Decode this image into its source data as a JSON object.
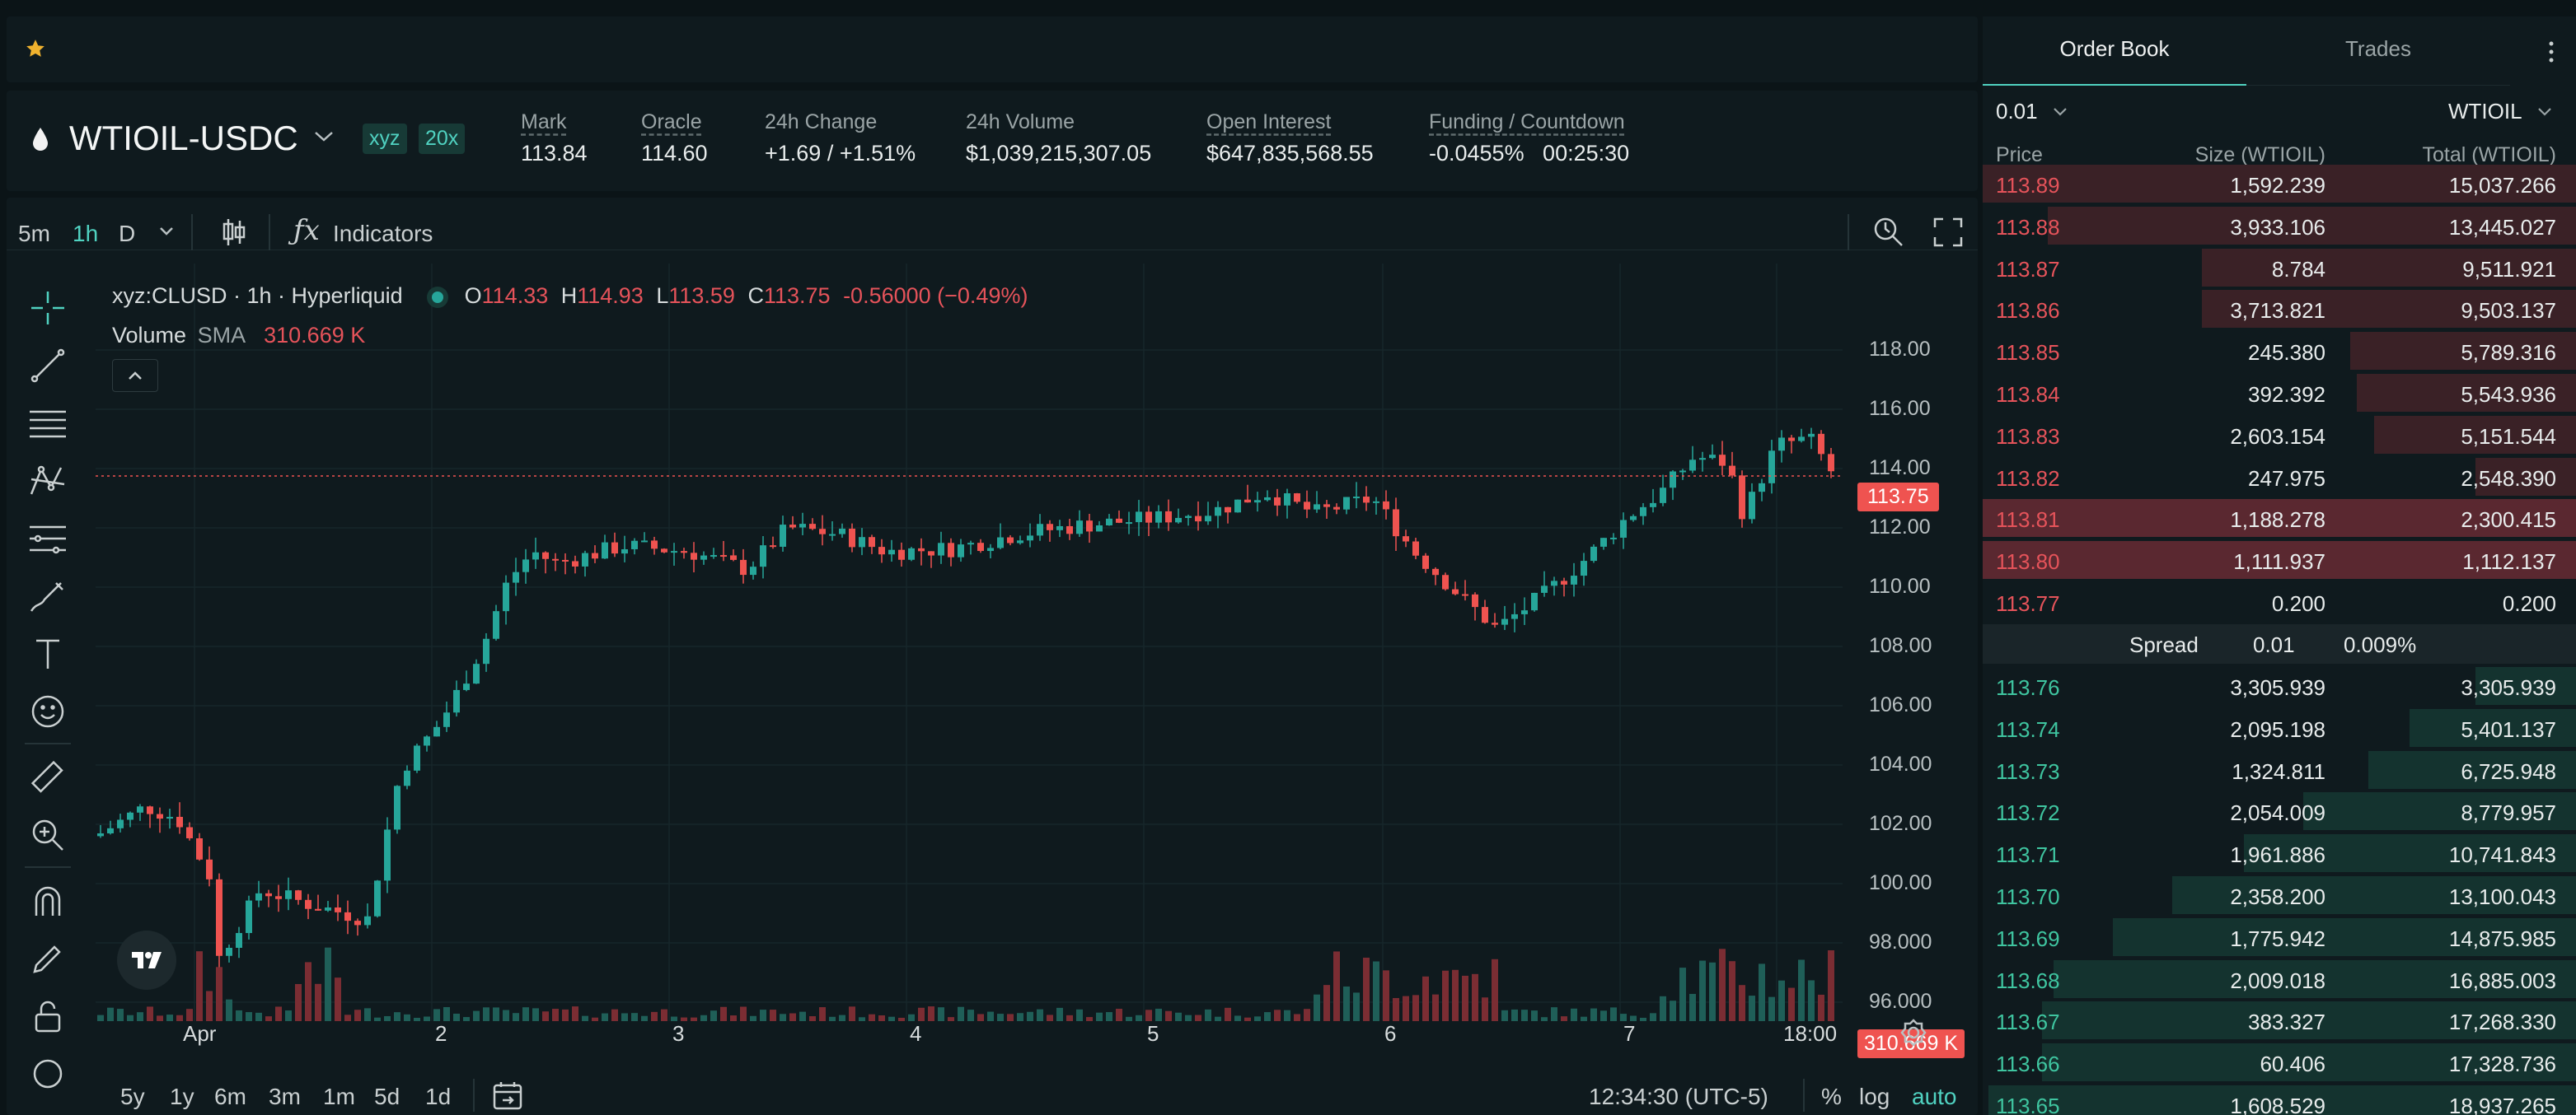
{
  "market": {
    "symbol": "WTIOIL-USDC",
    "dex_badge": "xyz",
    "leverage_badge": "20x"
  },
  "stats": [
    {
      "label": "Mark",
      "value": "113.84",
      "underline": true,
      "tone": "plain"
    },
    {
      "label": "Oracle",
      "value": "114.60",
      "underline": true,
      "tone": "plain"
    },
    {
      "label": "24h Change",
      "value": "+1.69 / +1.51%",
      "underline": false,
      "tone": "green"
    },
    {
      "label": "24h Volume",
      "value": "$1,039,215,307.05",
      "underline": false,
      "tone": "plain"
    },
    {
      "label": "Open Interest",
      "value": "$647,835,568.55",
      "underline": true,
      "tone": "plain"
    },
    {
      "label": "Funding / Countdown",
      "value": "-0.0455%",
      "value2": "00:25:30",
      "underline": true,
      "tone": "green"
    }
  ],
  "chart_toolbar": {
    "intervals": [
      "5m",
      "1h",
      "D"
    ],
    "active_interval": "1h",
    "indicators_label": "Indicators"
  },
  "legend": {
    "title": "xyz:CLUSD · 1h · Hyperliquid",
    "o_label": "O",
    "o": "114.33",
    "h_label": "H",
    "h": "114.93",
    "l_label": "L",
    "l": "113.59",
    "c_label": "C",
    "c": "113.75",
    "change": "-0.56000 (−0.49%)",
    "volume_label": "Volume",
    "sma_label": "SMA",
    "volume_value": "310.669 K"
  },
  "y_axis_labels": [
    "118.00",
    "116.00",
    "114.00",
    "112.00",
    "110.00",
    "108.00",
    "106.00",
    "104.00",
    "102.00",
    "100.00",
    "98.000",
    "96.000"
  ],
  "price_tag": "113.75",
  "volume_tag": "310.669 K",
  "x_axis_labels": [
    "Apr",
    "2",
    "3",
    "4",
    "5",
    "6",
    "7",
    "18:00"
  ],
  "bottom_bar": {
    "ranges": [
      "5y",
      "1y",
      "6m",
      "3m",
      "1m",
      "5d",
      "1d"
    ],
    "clock": "12:34:30 (UTC-5)",
    "percent": "%",
    "log": "log",
    "auto": "auto"
  },
  "orderbook": {
    "tab_orderbook": "Order Book",
    "tab_trades": "Trades",
    "tick_size": "0.01",
    "unit": "WTIOIL",
    "col_price": "Price",
    "col_size": "Size (WTIOIL)",
    "col_total": "Total (WTIOIL)",
    "asks": [
      {
        "price": "113.89",
        "size": "1,592.239",
        "total": "15,037.266",
        "depth": 1.0
      },
      {
        "price": "113.88",
        "size": "3,933.106",
        "total": "13,445.027",
        "depth": 0.89
      },
      {
        "price": "113.87",
        "size": "8.784",
        "total": "9,511.921",
        "depth": 0.63
      },
      {
        "price": "113.86",
        "size": "3,713.821",
        "total": "9,503.137",
        "depth": 0.63
      },
      {
        "price": "113.85",
        "size": "245.380",
        "total": "5,789.316",
        "depth": 0.38
      },
      {
        "price": "113.84",
        "size": "392.392",
        "total": "5,543.936",
        "depth": 0.37
      },
      {
        "price": "113.83",
        "size": "2,603.154",
        "total": "5,151.544",
        "depth": 0.34
      },
      {
        "price": "113.82",
        "size": "247.975",
        "total": "2,548.390",
        "depth": 0.17
      },
      {
        "price": "113.81",
        "size": "1,188.278",
        "total": "2,300.415",
        "depth": 1.0,
        "highlight": true
      },
      {
        "price": "113.80",
        "size": "1,111.937",
        "total": "1,112.137",
        "depth": 1.0,
        "highlight": true
      },
      {
        "price": "113.77",
        "size": "0.200",
        "total": "0.200",
        "depth": 0.0
      }
    ],
    "spread_label": "Spread",
    "spread_value": "0.01",
    "spread_pct": "0.009%",
    "bids": [
      {
        "price": "113.76",
        "size": "3,305.939",
        "total": "3,305.939",
        "depth": 0.17
      },
      {
        "price": "113.74",
        "size": "2,095.198",
        "total": "5,401.137",
        "depth": 0.28
      },
      {
        "price": "113.73",
        "size": "1,324.811",
        "total": "6,725.948",
        "depth": 0.35
      },
      {
        "price": "113.72",
        "size": "2,054.009",
        "total": "8,779.957",
        "depth": 0.46
      },
      {
        "price": "113.71",
        "size": "1,961.886",
        "total": "10,741.843",
        "depth": 0.56
      },
      {
        "price": "113.70",
        "size": "2,358.200",
        "total": "13,100.043",
        "depth": 0.68
      },
      {
        "price": "113.69",
        "size": "1,775.942",
        "total": "14,875.985",
        "depth": 0.78
      },
      {
        "price": "113.68",
        "size": "2,009.018",
        "total": "16,885.003",
        "depth": 0.88
      },
      {
        "price": "113.67",
        "size": "383.327",
        "total": "17,268.330",
        "depth": 0.9
      },
      {
        "price": "113.66",
        "size": "60.406",
        "total": "17,328.736",
        "depth": 0.9
      },
      {
        "price": "113.65",
        "size": "1,608.529",
        "total": "18,937.265",
        "depth": 0.99
      }
    ]
  },
  "colors": {
    "up": "#26a69a",
    "down": "#ef5350",
    "accent": "#50d2c1",
    "ask_bar": "#3a2126",
    "ask_bar_strong": "#5a2830",
    "bid_bar": "#14332f"
  }
}
